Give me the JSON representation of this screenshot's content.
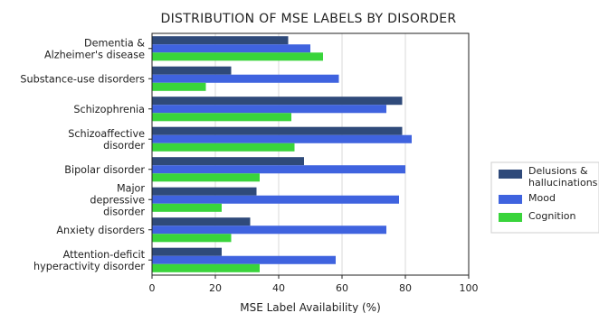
{
  "chart_data": {
    "type": "bar",
    "orientation": "horizontal",
    "title": "DISTRIBUTION OF MSE LABELS BY DISORDER",
    "xlabel": "MSE Label Availability (%)",
    "ylabel": "",
    "xlim": [
      0,
      100
    ],
    "xticks": [
      "0",
      "20",
      "40",
      "60",
      "80",
      "100"
    ],
    "grid": "vertical",
    "legend_position": "right",
    "categories": [
      [
        "Dementia &",
        "Alzheimer's disease"
      ],
      [
        "Substance-use disorders"
      ],
      [
        "Schizophrenia"
      ],
      [
        "Schizoaffective",
        "disorder"
      ],
      [
        "Bipolar disorder"
      ],
      [
        "Major",
        "depressive",
        "disorder"
      ],
      [
        "Anxiety disorders"
      ],
      [
        "Attention-deficit",
        "hyperactivity disorder"
      ]
    ],
    "series": [
      {
        "name": "Delusions &\nhallucinations",
        "color": "#2f4a7a",
        "values": [
          43,
          25,
          79,
          79,
          48,
          33,
          31,
          22
        ]
      },
      {
        "name": "Mood",
        "color": "#3f63df",
        "values": [
          50,
          59,
          74,
          82,
          80,
          78,
          74,
          58
        ]
      },
      {
        "name": "Cognition",
        "color": "#39d43b",
        "values": [
          54,
          17,
          44,
          45,
          34,
          22,
          25,
          34
        ]
      }
    ]
  }
}
